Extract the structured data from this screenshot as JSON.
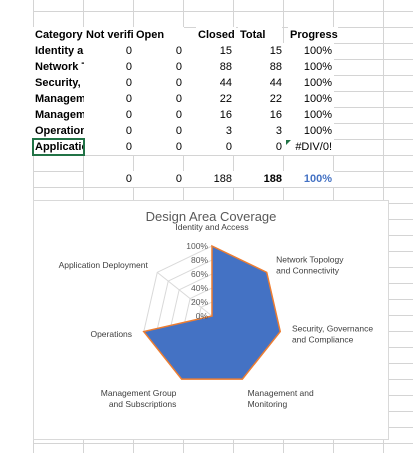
{
  "table": {
    "headers": [
      "Category",
      "Not verified",
      "Open",
      "Closed",
      "Total",
      "Progress"
    ],
    "rows": [
      {
        "category": "Identity and Access",
        "not_verified": "0",
        "open": "0",
        "closed": "15",
        "total": "15",
        "progress": "100%"
      },
      {
        "category": "Network Topology and Connectivity",
        "not_verified": "0",
        "open": "0",
        "closed": "88",
        "total": "88",
        "progress": "100%"
      },
      {
        "category": "Security, Governance and Compliance",
        "not_verified": "0",
        "open": "0",
        "closed": "44",
        "total": "44",
        "progress": "100%"
      },
      {
        "category": "Management and Monitoring",
        "not_verified": "0",
        "open": "0",
        "closed": "22",
        "total": "22",
        "progress": "100%"
      },
      {
        "category": "Management Group and Subscriptions",
        "not_verified": "0",
        "open": "0",
        "closed": "16",
        "total": "16",
        "progress": "100%"
      },
      {
        "category": "Operations",
        "not_verified": "0",
        "open": "0",
        "closed": "3",
        "total": "3",
        "progress": "100%"
      },
      {
        "category": "Application Deployment",
        "not_verified": "0",
        "open": "0",
        "closed": "0",
        "total": "0",
        "progress": "#DIV/0!"
      }
    ],
    "totals": {
      "not_verified": "0",
      "open": "0",
      "closed": "188",
      "total": "188",
      "progress": "100%"
    }
  },
  "colors": {
    "accent_green": "#217346",
    "total_progress_blue": "#4472c4",
    "radar_fill": "#4472c4",
    "radar_outline": "#ed7d31"
  },
  "chart_data": {
    "type": "radar",
    "title": "Design Area Coverage",
    "categories": [
      "Identity and Access",
      "Network Topology and Connectivity",
      "Security, Governance and Compliance",
      "Management and Monitoring",
      "Management Group and Subscriptions",
      "Operations",
      "Application Deployment"
    ],
    "series": [
      {
        "values": [
          100,
          100,
          100,
          100,
          100,
          100,
          0
        ]
      }
    ],
    "ticks": [
      "0%",
      "20%",
      "40%",
      "60%",
      "80%",
      "100%"
    ],
    "range": [
      0,
      100
    ]
  }
}
